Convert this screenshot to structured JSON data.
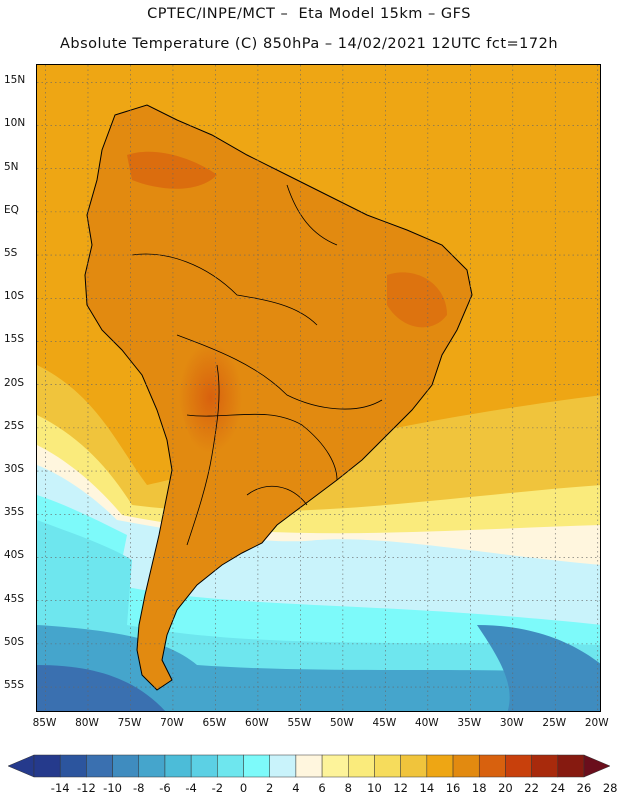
{
  "header": {
    "line1": "CPTEC/INPE/MCT –  Eta Model 15km – GFS",
    "line2": "Absolute Temperature (C) 850hPa – 14/02/2021 12UTC fct=172h"
  },
  "map": {
    "region": "South America",
    "lon_range": [
      -86,
      -19.5
    ],
    "lat_range": [
      -58,
      17
    ],
    "grid": true,
    "lat_labels": [
      "15N",
      "10N",
      "5N",
      "EQ",
      "5S",
      "10S",
      "15S",
      "20S",
      "25S",
      "30S",
      "35S",
      "40S",
      "45S",
      "50S",
      "55S"
    ],
    "lat_values": [
      15,
      10,
      5,
      0,
      -5,
      -10,
      -15,
      -20,
      -25,
      -30,
      -35,
      -40,
      -45,
      -50,
      -55
    ],
    "lon_labels": [
      "85W",
      "80W",
      "75W",
      "70W",
      "65W",
      "60W",
      "55W",
      "50W",
      "45W",
      "40W",
      "35W",
      "30W",
      "25W",
      "20W"
    ],
    "lon_values": [
      -85,
      -80,
      -75,
      -70,
      -65,
      -60,
      -55,
      -50,
      -45,
      -40,
      -35,
      -30,
      -25,
      -20
    ]
  },
  "colorbar": {
    "labels": [
      "-14",
      "-12",
      "-10",
      "-8",
      "-6",
      "-4",
      "-2",
      "0",
      "2",
      "4",
      "6",
      "8",
      "10",
      "12",
      "14",
      "16",
      "18",
      "20",
      "22",
      "24",
      "26",
      "28"
    ],
    "colors": [
      "#4a1020",
      "#253a8c",
      "#2c559e",
      "#3a70b0",
      "#3f8cbf",
      "#45a5cc",
      "#4cbcd8",
      "#5cd0e4",
      "#6ee6ee",
      "#7dfafa",
      "#c9f3fb",
      "#fff6de",
      "#fdf39a",
      "#faeb7c",
      "#f6dc5c",
      "#f0c43c",
      "#eea614",
      "#e28a10",
      "#d8610e",
      "#c8400c",
      "#a82a0c",
      "#861a10",
      "#6a0e1c"
    ]
  }
}
